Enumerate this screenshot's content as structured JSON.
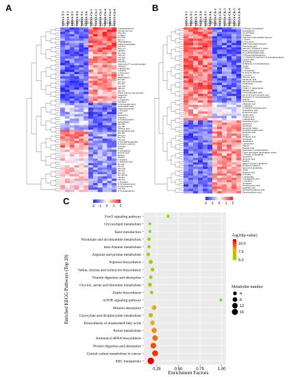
{
  "panels": {
    "a": {
      "label": "A",
      "samples": [
        "MRSA-T-1",
        "MRSA-T-2",
        "MRSA-T-3",
        "MRSA-T-4",
        "MRSA-T-5",
        "MRSA-T-6",
        "MRSA-Ck-1",
        "MRSA-Ck-2",
        "MRSA-Ck-3",
        "MRSA-Ck-4",
        "MRSA-Ck-5",
        "MRSA-Ck-6"
      ],
      "metabolites": [
        "Tryptophylglycine",
        "Glu-Ile-Leu-Leu",
        "Phe-Arg",
        "L-Valine",
        "Gly-Phe",
        "Ile-Leu",
        "Phenylalanine",
        "Alpha-Aminoadipic",
        "Leu-Pro",
        "Phe-Leu",
        "Val-Phe",
        "Pro-Arg",
        "Val-Leu",
        "Leu-Arg",
        "Leu-Ile",
        "Phe-Phe",
        "Adenosine 5'-monophosphate",
        "Tyrosine",
        "L-Methionine",
        "L-Proline",
        "L-Threonine",
        "Ile-Val",
        "Phenylacetyl",
        "Pro-Ser",
        "Ser-Leu",
        "Pro-Pro",
        "Leu-Leu",
        "Val-Gly",
        "Gly-Leu",
        "Flavin adenine dinucleotide",
        "Isoleucine",
        "Arginine",
        "L-Glutamine",
        "Ornithine",
        "5'-Aminoadenosine",
        "Aminoadipic acid",
        "Adenylosuccinate",
        "L-Tyrosine",
        "UMP",
        "Guanosine",
        "Thymine",
        "N-Acetylornithine",
        "Sphingosine",
        "Glu-Val",
        "Gly-His",
        "Sebacic acid",
        "Pyroglutamic acid",
        "Pro-Val",
        "His-Leu",
        "Pro-Thr",
        "Thr-Arg",
        "3-Aminoisobutanoate",
        "N-Acetyl-L-alanine",
        "Cytosine",
        "Uracil",
        "2-Oxoadipate",
        "Pimelic acid",
        "Betaine",
        "Taurine",
        "L-Arginine",
        "L-Glutamic acid",
        "Ile-Asp",
        "Ser-Ile",
        "Phe-His",
        "Gly-Glu",
        "Gln-Gly",
        "Ile-Val-Ser",
        "Val-Ser",
        "Glu-Leu",
        "L-Carnitine",
        "N-Acetylputrescine",
        "D-Glucosamine",
        "Leu-Ala",
        "N-Acetylglutamine"
      ],
      "colorbar_ticks": [
        "-2",
        "-1",
        "0",
        "1",
        "2"
      ]
    },
    "b": {
      "label": "B",
      "samples": [
        "MRSA-T-1",
        "MRSA-T-2",
        "MRSA-T-3",
        "MRSA-T-4",
        "MRSA-T-5",
        "MRSA-T-6",
        "MRSA-CK-1",
        "MRSA-CK-2",
        "MRSA-CK-3",
        "MRSA-CK-4",
        "MRSA-CK-5",
        "MRSA-CK-6"
      ],
      "metabolites": [
        "D-Ribose 5-phosphate",
        "Acetylglycine",
        "cis-Aconitate",
        "D-Malate",
        "Adenosine diphosphate glucose",
        "L-Serine",
        "L-Threonine",
        "UDP-N-acetylglucosamine",
        "Palmitoleic acid",
        "gamma-L-Glutamyl-L-valine",
        "Hydroxyisocaproic acid",
        "DL-2-Phosphoglycerate",
        "O-Phosphoethanolamine",
        "2-C-Methyl-D-erythritol 2,4-cyclodiphosphate",
        "Linoleic acid",
        "Succinate",
        "D-Ribulose 1,5-bisphosphate",
        "Citrate",
        "L-Valine",
        "L-Tryptophan",
        "N-Acetyl-L-alanine",
        "L-Leucine",
        "Glyceric acid",
        "Mevalonic acid",
        "Glycerol 3-phosphate",
        "Xanthosine",
        "Inosine",
        "Uridine 5'-diphosphate",
        "Myristic acid",
        "5-Aminolevulinic acid",
        "all cis-(6,9,12)-Linolenic acid",
        "Guanosine 5'-monophosphate",
        "Alanine",
        "Hypoxanthine",
        "Oleanolic acid",
        "L-Histidine",
        "S-Methyl-5'-thioadenosine",
        "Arachidonic acid",
        "D-Gluconic acid",
        "Stearic acid",
        "Sebacic acid",
        "L-Methionine",
        "Pantothenic acid",
        "Isoleucine",
        "Nicotinate",
        "Acetyl-DL-Valine",
        "Hexadecanedioic acid",
        "Decanoic acid",
        "Proline",
        "Propionic acid",
        "Succinate",
        "Glutathione",
        "Lumichrome",
        "Alanine",
        "Palmitic acid",
        "Guanosine monophosphate",
        "Cyclic adenosine diphosphate ribose",
        "L-Fucose 1-phosphate",
        "Sarcosine",
        "Gluconic acid",
        "Betaine",
        "alpha-N-Acetyl-L-glutamine",
        "D-Alanyl-D-alanine",
        "Glycerol 3-phosphate",
        "Uracil",
        "Nicotinic acid",
        "D-Proline",
        "L-Glutamate",
        "2-Oxoglutaric acid",
        "L-Cysteine",
        "Glutamine",
        "Hexadecanoic acid",
        "Arachidic acid",
        "16-Hydroxypalmitic acid",
        "Pyrophosphoric acid"
      ],
      "colorbar_ticks": [
        "-2",
        "-1",
        "0",
        "1",
        "2"
      ]
    },
    "c": {
      "label": "C",
      "xlabel": "Enrichment Factors",
      "ylabel": "Enriched KEGG Pathways (Top 20)",
      "pvalue_legend_title": "-log10(p-value)",
      "pvalue_ticks": [
        "10.0",
        "7.5",
        "5.0"
      ],
      "size_legend_title": "Metabolite number",
      "size_ticks": [
        "4",
        "8",
        "12",
        "16"
      ]
    }
  },
  "chart_data": {
    "type": "scatter",
    "xlabel": "Enrichment Factors",
    "ylabel": "Enriched KEGG Pathways (Top 20)",
    "xlim": [
      0.1,
      1.05
    ],
    "xticks": [
      "0.25",
      "0.50",
      "0.75",
      "1.00"
    ],
    "points": [
      {
        "pathway": "FoxO signaling pathway",
        "x": 0.38,
        "neglog10p": 5.0,
        "count": 2
      },
      {
        "pathway": "Glycerolipid metabolism",
        "x": 0.17,
        "neglog10p": 5.3,
        "count": 2
      },
      {
        "pathway": "Taste transduction",
        "x": 0.17,
        "neglog10p": 5.3,
        "count": 2
      },
      {
        "pathway": "Nicotinate and nicotinamide metabolism",
        "x": 0.16,
        "neglog10p": 5.5,
        "count": 3
      },
      {
        "pathway": "beta-Alanine metabolism",
        "x": 0.16,
        "neglog10p": 5.5,
        "count": 3
      },
      {
        "pathway": "Arginine and proline metabolism",
        "x": 0.15,
        "neglog10p": 6.0,
        "count": 4
      },
      {
        "pathway": "Arginine biosynthesis",
        "x": 0.18,
        "neglog10p": 6.2,
        "count": 5
      },
      {
        "pathway": "Valine, leucine and isoleucine biosynthesis",
        "x": 0.2,
        "neglog10p": 6.0,
        "count": 4
      },
      {
        "pathway": "Vitamin digestion and absorption",
        "x": 0.18,
        "neglog10p": 5.5,
        "count": 3
      },
      {
        "pathway": "Glycine, serine and threonine metabolism",
        "x": 0.17,
        "neglog10p": 6.5,
        "count": 5
      },
      {
        "pathway": "Zeatin biosynthesis",
        "x": 0.19,
        "neglog10p": 5.5,
        "count": 3
      },
      {
        "pathway": "mTOR signaling pathway",
        "x": 0.99,
        "neglog10p": 5.0,
        "count": 2
      },
      {
        "pathway": "Mineral absorption",
        "x": 0.22,
        "neglog10p": 7.5,
        "count": 8
      },
      {
        "pathway": "Glyoxylate and dicarboxylate metabolism",
        "x": 0.18,
        "neglog10p": 7.0,
        "count": 6
      },
      {
        "pathway": "Biosynthesis of unsaturated fatty acids",
        "x": 0.2,
        "neglog10p": 7.2,
        "count": 7
      },
      {
        "pathway": "Purine metabolism",
        "x": 0.22,
        "neglog10p": 8.5,
        "count": 10
      },
      {
        "pathway": "Aminoacyl-tRNA biosynthesis",
        "x": 0.23,
        "neglog10p": 9.0,
        "count": 12
      },
      {
        "pathway": "Protein digestion and absorption",
        "x": 0.21,
        "neglog10p": 9.5,
        "count": 13
      },
      {
        "pathway": "Central carbon metabolism in cancer",
        "x": 0.23,
        "neglog10p": 10.0,
        "count": 14
      },
      {
        "pathway": "ABC transporters",
        "x": 0.18,
        "neglog10p": 11.0,
        "count": 18
      }
    ],
    "colors": {
      "low": "#7fe000",
      "mid": "#f7a21b",
      "high": "#e00000"
    }
  }
}
